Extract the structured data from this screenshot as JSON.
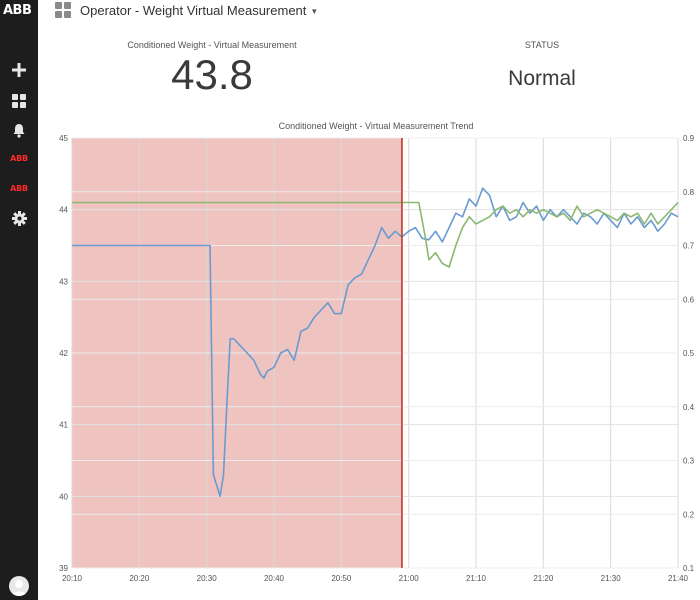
{
  "header": {
    "title": "Operator - Weight Virtual Measurement",
    "dashboard_icon": "grid-icon",
    "dropdown_icon": "caret-down-icon"
  },
  "sidebar": {
    "logo": "ABB",
    "items": [
      {
        "name": "add",
        "icon": "plus-icon"
      },
      {
        "name": "dashboards",
        "icon": "grid-icon"
      },
      {
        "name": "alarms",
        "icon": "bell-icon"
      },
      {
        "name": "abb-app-1",
        "label": "ABB"
      },
      {
        "name": "abb-app-2",
        "label": "ABB"
      },
      {
        "name": "settings",
        "icon": "gear-icon"
      }
    ],
    "user_icon": "user-avatar-icon"
  },
  "kpi": {
    "weight_label": "Conditioned Weight - Virtual Measurement",
    "weight_value": "43.8",
    "status_label": "STATUS",
    "status_value": "Normal"
  },
  "colors": {
    "sidebar": "#1d1d1d",
    "logo_red": "#ff2a2a",
    "shade": "#efc3c0",
    "marker": "#c0392b",
    "blue": "#6a9bd0",
    "green": "#8bb870"
  },
  "chart_data": {
    "type": "line",
    "title": "Conditioned Weight - Virtual Measurement Trend",
    "x_ticks": [
      "20:10",
      "20:20",
      "20:30",
      "20:40",
      "20:50",
      "21:00",
      "21:10",
      "21:20",
      "21:30",
      "21:40"
    ],
    "y_left": {
      "min": 39,
      "max": 45,
      "ticks": [
        "39",
        "40",
        "41",
        "42",
        "43",
        "44",
        "45"
      ]
    },
    "y_right": {
      "min": 0.1,
      "max": 0.9,
      "ticks": [
        "0.1",
        "0.2",
        "0.3",
        "0.4",
        "0.5",
        "0.6",
        "0.7",
        "0.8",
        "0.9"
      ]
    },
    "shaded_region": {
      "from": "20:10",
      "to": "20:59"
    },
    "marker_time": "20:59",
    "grid": true,
    "series": [
      {
        "axis": "left",
        "color": "#6a9bd0",
        "points": [
          [
            "20:10",
            43.5
          ],
          [
            "20:30.5",
            43.5
          ],
          [
            "20:31",
            40.3
          ],
          [
            "20:32",
            40
          ],
          [
            "20:32.5",
            40.3
          ],
          [
            "20:33",
            41.3
          ],
          [
            "20:33.5",
            42.2
          ],
          [
            "20:34",
            42.2
          ],
          [
            "20:35",
            42.1
          ],
          [
            "20:36",
            42
          ],
          [
            "20:37",
            41.9
          ],
          [
            "20:38",
            41.7
          ],
          [
            "20:38.5",
            41.65
          ],
          [
            "20:39",
            41.75
          ],
          [
            "20:40",
            41.8
          ],
          [
            "20:41",
            42
          ],
          [
            "20:42",
            42.05
          ],
          [
            "20:43",
            41.9
          ],
          [
            "20:44",
            42.3
          ],
          [
            "20:45",
            42.35
          ],
          [
            "20:46",
            42.5
          ],
          [
            "20:47",
            42.6
          ],
          [
            "20:48",
            42.7
          ],
          [
            "20:49",
            42.55
          ],
          [
            "20:50",
            42.55
          ],
          [
            "20:51",
            42.95
          ],
          [
            "20:52",
            43.05
          ],
          [
            "20:53",
            43.1
          ],
          [
            "20:54",
            43.3
          ],
          [
            "20:55",
            43.5
          ],
          [
            "20:56",
            43.75
          ],
          [
            "20:57",
            43.6
          ],
          [
            "20:58",
            43.7
          ],
          [
            "20:59",
            43.62
          ],
          [
            "21:00",
            43.7
          ],
          [
            "21:01",
            43.75
          ],
          [
            "21:02",
            43.6
          ],
          [
            "21:03",
            43.58
          ],
          [
            "21:04",
            43.7
          ],
          [
            "21:05",
            43.55
          ],
          [
            "21:06",
            43.75
          ],
          [
            "21:07",
            43.95
          ],
          [
            "21:08",
            43.9
          ],
          [
            "21:09",
            44.15
          ],
          [
            "21:10",
            44.05
          ],
          [
            "21:11",
            44.3
          ],
          [
            "21:12",
            44.2
          ],
          [
            "21:13",
            43.9
          ],
          [
            "21:14",
            44.05
          ],
          [
            "21:15",
            43.85
          ],
          [
            "21:16",
            43.9
          ],
          [
            "21:17",
            44.1
          ],
          [
            "21:18",
            43.95
          ],
          [
            "21:19",
            44.05
          ],
          [
            "21:20",
            43.85
          ],
          [
            "21:21",
            44
          ],
          [
            "21:22",
            43.9
          ],
          [
            "21:23",
            44
          ],
          [
            "21:24",
            43.9
          ],
          [
            "21:25",
            43.8
          ],
          [
            "21:26",
            43.95
          ],
          [
            "21:27",
            43.9
          ],
          [
            "21:28",
            43.8
          ],
          [
            "21:29",
            43.95
          ],
          [
            "21:30",
            43.85
          ],
          [
            "21:31",
            43.75
          ],
          [
            "21:32",
            43.95
          ],
          [
            "21:33",
            43.8
          ],
          [
            "21:34",
            43.9
          ],
          [
            "21:35",
            43.75
          ],
          [
            "21:36",
            43.85
          ],
          [
            "21:37",
            43.7
          ],
          [
            "21:38",
            43.8
          ],
          [
            "21:39",
            43.95
          ],
          [
            "21:40",
            43.9
          ]
        ]
      },
      {
        "axis": "left",
        "color": "#8bb870",
        "points": [
          [
            "20:10",
            44.1
          ],
          [
            "21:01.5",
            44.1
          ],
          [
            "21:02.5",
            43.6
          ],
          [
            "21:03",
            43.3
          ],
          [
            "21:04",
            43.4
          ],
          [
            "21:05",
            43.25
          ],
          [
            "21:06",
            43.2
          ],
          [
            "21:07",
            43.5
          ],
          [
            "21:08",
            43.75
          ],
          [
            "21:09",
            43.9
          ],
          [
            "21:10",
            43.8
          ],
          [
            "21:11",
            43.85
          ],
          [
            "21:12",
            43.9
          ],
          [
            "21:13",
            44
          ],
          [
            "21:14",
            44.05
          ],
          [
            "21:15",
            43.95
          ],
          [
            "21:16",
            44
          ],
          [
            "21:17",
            43.9
          ],
          [
            "21:18",
            44
          ],
          [
            "21:19",
            43.95
          ],
          [
            "21:20",
            44
          ],
          [
            "21:21",
            43.95
          ],
          [
            "21:22",
            43.9
          ],
          [
            "21:23",
            43.95
          ],
          [
            "21:24",
            43.85
          ],
          [
            "21:25",
            44.05
          ],
          [
            "21:26",
            43.9
          ],
          [
            "21:27",
            43.95
          ],
          [
            "21:28",
            44
          ],
          [
            "21:29",
            43.95
          ],
          [
            "21:30",
            43.9
          ],
          [
            "21:31",
            43.85
          ],
          [
            "21:32",
            43.95
          ],
          [
            "21:33",
            43.9
          ],
          [
            "21:34",
            43.95
          ],
          [
            "21:35",
            43.8
          ],
          [
            "21:36",
            43.95
          ],
          [
            "21:37",
            43.8
          ],
          [
            "21:38",
            43.9
          ],
          [
            "21:39",
            44
          ],
          [
            "21:40",
            44.1
          ]
        ]
      }
    ]
  }
}
